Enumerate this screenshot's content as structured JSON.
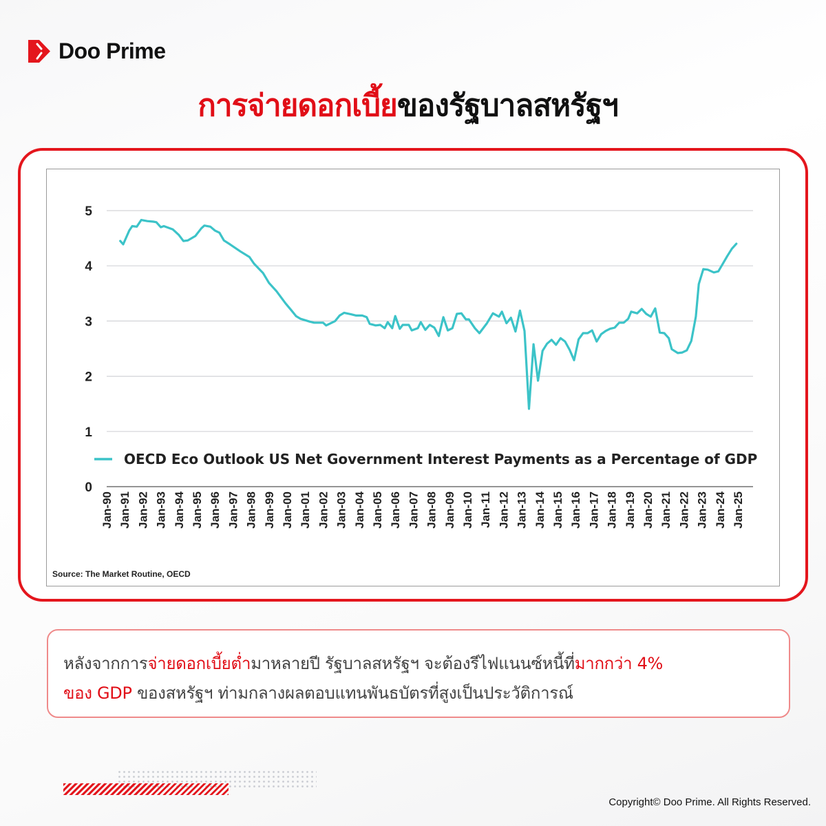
{
  "brand": {
    "name": "Doo Prime",
    "accent": "#e4161d"
  },
  "title": {
    "red_part": "การจ่ายดอกเบี้ย",
    "black_part": "ของรัฐบาลสหรัฐฯ"
  },
  "chart_data": {
    "type": "line",
    "title": "",
    "xlabel": "",
    "ylabel": "",
    "ylim": [
      0,
      5
    ],
    "yticks": [
      "0",
      "1",
      "2",
      "3",
      "4",
      "5"
    ],
    "xticks": [
      "Jan-90",
      "Jan-91",
      "Jan-92",
      "Jan-93",
      "Jan-94",
      "Jan-95",
      "Jan-96",
      "Jan-97",
      "Jan-98",
      "Jan-99",
      "Jan-00",
      "Jan-01",
      "Jan-02",
      "Jan-03",
      "Jan-04",
      "Jan-05",
      "Jan-06",
      "Jan-07",
      "Jan-08",
      "Jan-09",
      "Jan-10",
      "Jan-11",
      "Jan-12",
      "Jan-13",
      "Jan-14",
      "Jan-15",
      "Jan-16",
      "Jan-17",
      "Jan-18",
      "Jan-19",
      "Jan-20",
      "Jan-21",
      "Jan-22",
      "Jan-23",
      "Jan-24",
      "Jan-25"
    ],
    "xlim": [
      "1990-01",
      "2025-01"
    ],
    "grid": true,
    "legend_position": "bottom-inside",
    "source": "Source: The Market Routine, OECD",
    "series": [
      {
        "name": "OECD Eco Outlook US Net Government Interest Payments as a Percentage of GDP",
        "color": "#3cc3c8",
        "points": [
          [
            "1990-10",
            4.45
          ],
          [
            "1990-12",
            4.39
          ],
          [
            "1991-04",
            4.64
          ],
          [
            "1991-06",
            4.72
          ],
          [
            "1991-09",
            4.71
          ],
          [
            "1991-12",
            4.83
          ],
          [
            "1992-04",
            4.81
          ],
          [
            "1992-08",
            4.8
          ],
          [
            "1992-10",
            4.79
          ],
          [
            "1993-01",
            4.7
          ],
          [
            "1993-03",
            4.72
          ],
          [
            "1993-09",
            4.66
          ],
          [
            "1994-01",
            4.56
          ],
          [
            "1994-04",
            4.45
          ],
          [
            "1994-07",
            4.46
          ],
          [
            "1994-12",
            4.54
          ],
          [
            "1995-04",
            4.68
          ],
          [
            "1995-06",
            4.73
          ],
          [
            "1995-10",
            4.71
          ],
          [
            "1996-01",
            4.64
          ],
          [
            "1996-04",
            4.6
          ],
          [
            "1996-07",
            4.46
          ],
          [
            "1996-11",
            4.39
          ],
          [
            "1997-06",
            4.26
          ],
          [
            "1997-12",
            4.16
          ],
          [
            "1998-03",
            4.04
          ],
          [
            "1998-09",
            3.87
          ],
          [
            "1999-01",
            3.69
          ],
          [
            "1999-06",
            3.54
          ],
          [
            "1999-12",
            3.32
          ],
          [
            "2000-04",
            3.19
          ],
          [
            "2000-07",
            3.09
          ],
          [
            "2000-10",
            3.04
          ],
          [
            "2001-04",
            2.99
          ],
          [
            "2001-07",
            2.97
          ],
          [
            "2002-01",
            2.97
          ],
          [
            "2002-03",
            2.92
          ],
          [
            "2002-09",
            3.0
          ],
          [
            "2002-12",
            3.1
          ],
          [
            "2003-03",
            3.15
          ],
          [
            "2003-08",
            3.12
          ],
          [
            "2003-11",
            3.1
          ],
          [
            "2004-03",
            3.1
          ],
          [
            "2004-06",
            3.07
          ],
          [
            "2004-08",
            2.95
          ],
          [
            "2004-12",
            2.92
          ],
          [
            "2005-03",
            2.93
          ],
          [
            "2005-06",
            2.87
          ],
          [
            "2005-08",
            2.98
          ],
          [
            "2005-11",
            2.87
          ],
          [
            "2006-01",
            3.09
          ],
          [
            "2006-04",
            2.86
          ],
          [
            "2006-06",
            2.93
          ],
          [
            "2006-10",
            2.93
          ],
          [
            "2006-12",
            2.83
          ],
          [
            "2007-04",
            2.87
          ],
          [
            "2007-06",
            2.98
          ],
          [
            "2007-09",
            2.84
          ],
          [
            "2007-12",
            2.93
          ],
          [
            "2008-03",
            2.88
          ],
          [
            "2008-06",
            2.73
          ],
          [
            "2008-09",
            3.07
          ],
          [
            "2008-12",
            2.83
          ],
          [
            "2009-03",
            2.87
          ],
          [
            "2009-06",
            3.13
          ],
          [
            "2009-09",
            3.14
          ],
          [
            "2009-12",
            3.03
          ],
          [
            "2010-02",
            3.03
          ],
          [
            "2010-06",
            2.87
          ],
          [
            "2010-09",
            2.78
          ],
          [
            "2011-02",
            2.96
          ],
          [
            "2011-06",
            3.14
          ],
          [
            "2011-10",
            3.08
          ],
          [
            "2011-12",
            3.17
          ],
          [
            "2012-03",
            2.96
          ],
          [
            "2012-06",
            3.06
          ],
          [
            "2012-09",
            2.81
          ],
          [
            "2012-12",
            3.19
          ],
          [
            "2013-03",
            2.82
          ],
          [
            "2013-06",
            1.41
          ],
          [
            "2013-09",
            2.58
          ],
          [
            "2013-12",
            1.92
          ],
          [
            "2014-03",
            2.46
          ],
          [
            "2014-06",
            2.59
          ],
          [
            "2014-09",
            2.66
          ],
          [
            "2014-12",
            2.57
          ],
          [
            "2015-03",
            2.69
          ],
          [
            "2015-06",
            2.63
          ],
          [
            "2015-09",
            2.48
          ],
          [
            "2015-12",
            2.29
          ],
          [
            "2016-03",
            2.67
          ],
          [
            "2016-06",
            2.78
          ],
          [
            "2016-09",
            2.78
          ],
          [
            "2016-12",
            2.83
          ],
          [
            "2017-03",
            2.63
          ],
          [
            "2017-06",
            2.76
          ],
          [
            "2017-09",
            2.82
          ],
          [
            "2017-12",
            2.86
          ],
          [
            "2018-03",
            2.88
          ],
          [
            "2018-06",
            2.97
          ],
          [
            "2018-09",
            2.97
          ],
          [
            "2018-12",
            3.04
          ],
          [
            "2019-02",
            3.17
          ],
          [
            "2019-06",
            3.14
          ],
          [
            "2019-09",
            3.22
          ],
          [
            "2019-12",
            3.13
          ],
          [
            "2020-03",
            3.08
          ],
          [
            "2020-06",
            3.23
          ],
          [
            "2020-09",
            2.79
          ],
          [
            "2020-12",
            2.78
          ],
          [
            "2021-03",
            2.69
          ],
          [
            "2021-05",
            2.49
          ],
          [
            "2021-09",
            2.42
          ],
          [
            "2021-12",
            2.43
          ],
          [
            "2022-03",
            2.47
          ],
          [
            "2022-06",
            2.64
          ],
          [
            "2022-09",
            3.08
          ],
          [
            "2022-11",
            3.67
          ],
          [
            "2023-02",
            3.94
          ],
          [
            "2023-05",
            3.93
          ],
          [
            "2023-09",
            3.88
          ],
          [
            "2023-12",
            3.9
          ],
          [
            "2024-03",
            4.04
          ],
          [
            "2024-06",
            4.18
          ],
          [
            "2024-09",
            4.31
          ],
          [
            "2024-12",
            4.4
          ]
        ]
      }
    ]
  },
  "caption": {
    "line1_a": "หลังจากการ",
    "line1_b": "จ่ายดอกเบี้ยต่ำ",
    "line1_c": "มาหลายปี รัฐบาลสหรัฐฯ จะต้องรีไฟแนนซ์หนี้ที่",
    "line1_d": "มากกว่า 4%",
    "line2_a": "ของ GDP",
    "line2_b": " ของสหรัฐฯ ท่ามกลางผลตอบแทนพันธบัตรที่สูงเป็นประวัติการณ์"
  },
  "footer": {
    "copyright": "Copyright© Doo Prime. All Rights Reserved."
  }
}
